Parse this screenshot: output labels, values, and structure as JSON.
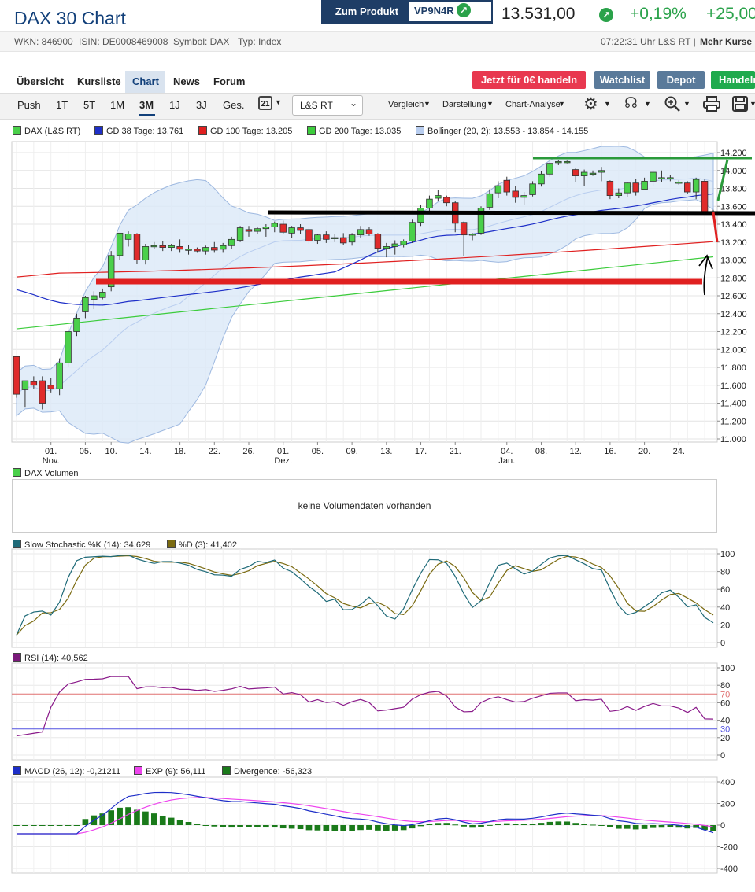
{
  "header": {
    "title": "DAX 30 Chart",
    "product_button": "Zum Produkt",
    "product_wkn": "VP9N4R",
    "price": "13.531,00",
    "change_pct": "+0,19%",
    "change_abs": "+25,00",
    "wkn": "WKN: 846900",
    "isin": "ISIN: DE0008469008",
    "symbol": "Symbol: DAX",
    "typ": "Typ: Index",
    "time": "07:22:31 Uhr L&S RT |",
    "more": "Mehr Kurse"
  },
  "nav": {
    "items": [
      "Übersicht",
      "Kursliste",
      "Chart",
      "News",
      "Forum"
    ],
    "trade_button": "Jetzt für 0€ handeln",
    "watchlist_button": "Watchlist",
    "depot_button": "Depot",
    "handeln_button": "Handeln"
  },
  "toolbar": {
    "periods": [
      "Push",
      "1T",
      "5T",
      "1M",
      "3M",
      "1J",
      "3J",
      "Ges."
    ],
    "calendar_day": "21",
    "exchange": "L&S RT",
    "vergleich": "Vergleich",
    "darstellung": "Darstellung",
    "analyse": "Chart-Analyse"
  },
  "legend": {
    "dax": "DAX (L&S RT)",
    "gd38": "GD 38 Tage: 13.761",
    "gd100": "GD 100 Tage: 13.205",
    "gd200": "GD 200 Tage: 13.035",
    "bollinger": "Bollinger (20, 2): 13.553 - 13.854 - 14.155",
    "volume": "DAX Volumen",
    "no_volume": "keine Volumendaten vorhanden",
    "stoch_k": "Slow Stochastic %K (14): 34,629",
    "stoch_d": "%D (3): 41,402",
    "rsi": "RSI (14): 40,562",
    "macd": "MACD (26, 12): -0,21211",
    "exp": "EXP (9): 56,111",
    "divergence": "Divergence: -56,323"
  },
  "colors": {
    "up": "#4ad04a",
    "down": "#e02b2b",
    "gd38": "#1e2fc8",
    "gd100": "#e02020",
    "gd200": "#3ccc3c",
    "boll_fill": "#dbe8f8",
    "accent": "#12407a"
  },
  "chart_data": [
    {
      "type": "candlestick",
      "yticks": [
        "14.200",
        "14.000",
        "13.800",
        "13.600",
        "13.400",
        "13.200",
        "13.000",
        "12.800",
        "12.600",
        "12.400",
        "12.200",
        "12.000",
        "11.800",
        "11.600",
        "11.400",
        "11.200",
        "11.000"
      ],
      "ylim": [
        10900,
        14300
      ],
      "xticks": [
        {
          "label": "01.",
          "sub": "Nov.",
          "i": 4
        },
        {
          "label": "05.",
          "i": 8
        },
        {
          "label": "10.",
          "i": 11
        },
        {
          "label": "14.",
          "i": 15
        },
        {
          "label": "18.",
          "i": 19
        },
        {
          "label": "22.",
          "i": 23
        },
        {
          "label": "26.",
          "i": 27
        },
        {
          "label": "01.",
          "sub": "Dez.",
          "i": 31
        },
        {
          "label": "05.",
          "i": 35
        },
        {
          "label": "09.",
          "i": 39
        },
        {
          "label": "13.",
          "i": 43
        },
        {
          "label": "17.",
          "i": 47
        },
        {
          "label": "21.",
          "i": 51
        },
        {
          "label": "04.",
          "sub": "Jan.",
          "i": 57
        },
        {
          "label": "08.",
          "i": 61
        },
        {
          "label": "12.",
          "i": 65
        },
        {
          "label": "16.",
          "i": 69
        },
        {
          "label": "20.",
          "i": 73
        },
        {
          "label": "24.",
          "i": 77
        }
      ],
      "candles": [
        [
          11920,
          11930,
          11460,
          11500
        ],
        [
          11550,
          11650,
          11350,
          11650
        ],
        [
          11640,
          11700,
          11560,
          11600
        ],
        [
          11650,
          11700,
          11330,
          11400
        ],
        [
          11600,
          11680,
          11520,
          11560
        ],
        [
          11560,
          11900,
          11490,
          11850
        ],
        [
          11850,
          12250,
          11800,
          12200
        ],
        [
          12200,
          12400,
          12150,
          12350
        ],
        [
          12420,
          12600,
          12350,
          12580
        ],
        [
          12560,
          12650,
          12450,
          12600
        ],
        [
          12580,
          12680,
          12560,
          12640
        ],
        [
          12700,
          13100,
          12650,
          13050
        ],
        [
          13050,
          13300,
          13000,
          13300
        ],
        [
          13230,
          13320,
          13150,
          13290
        ],
        [
          13290,
          13300,
          12960,
          13000
        ],
        [
          13000,
          13180,
          12950,
          13150
        ],
        [
          13150,
          13200,
          13120,
          13160
        ],
        [
          13160,
          13210,
          13100,
          13140
        ],
        [
          13140,
          13180,
          13100,
          13160
        ],
        [
          13150,
          13230,
          13080,
          13120
        ],
        [
          13110,
          13170,
          13060,
          13120
        ],
        [
          13120,
          13140,
          13080,
          13100
        ],
        [
          13100,
          13160,
          13060,
          13140
        ],
        [
          13140,
          13200,
          13080,
          13110
        ],
        [
          13120,
          13190,
          13080,
          13160
        ],
        [
          13160,
          13260,
          13120,
          13230
        ],
        [
          13220,
          13380,
          13200,
          13360
        ],
        [
          13340,
          13380,
          13260,
          13320
        ],
        [
          13320,
          13370,
          13290,
          13350
        ],
        [
          13350,
          13400,
          13260,
          13370
        ],
        [
          13370,
          13430,
          13310,
          13410
        ],
        [
          13400,
          13440,
          13290,
          13310
        ],
        [
          13300,
          13380,
          13250,
          13360
        ],
        [
          13360,
          13400,
          13290,
          13330
        ],
        [
          13340,
          13370,
          13180,
          13210
        ],
        [
          13220,
          13290,
          13180,
          13280
        ],
        [
          13280,
          13320,
          13190,
          13230
        ],
        [
          13240,
          13290,
          13200,
          13250
        ],
        [
          13250,
          13300,
          13170,
          13190
        ],
        [
          13200,
          13300,
          13160,
          13280
        ],
        [
          13280,
          13380,
          13250,
          13340
        ],
        [
          13340,
          13370,
          13270,
          13290
        ],
        [
          13290,
          13300,
          13080,
          13130
        ],
        [
          13130,
          13190,
          13030,
          13150
        ],
        [
          13150,
          13220,
          13060,
          13180
        ],
        [
          13170,
          13230,
          13140,
          13210
        ],
        [
          13210,
          13450,
          13190,
          13420
        ],
        [
          13420,
          13620,
          13380,
          13580
        ],
        [
          13580,
          13720,
          13540,
          13680
        ],
        [
          13690,
          13780,
          13660,
          13720
        ],
        [
          13700,
          13720,
          13600,
          13640
        ],
        [
          13640,
          13660,
          13310,
          13410
        ],
        [
          13420,
          13430,
          13040,
          13280
        ],
        [
          13280,
          13300,
          13220,
          13290
        ],
        [
          13300,
          13600,
          13280,
          13580
        ],
        [
          13590,
          13790,
          13560,
          13740
        ],
        [
          13750,
          13880,
          13690,
          13830
        ],
        [
          13890,
          13930,
          13720,
          13760
        ],
        [
          13770,
          13830,
          13640,
          13700
        ],
        [
          13700,
          13760,
          13620,
          13720
        ],
        [
          13730,
          13880,
          13710,
          13850
        ],
        [
          13850,
          13990,
          13820,
          13960
        ],
        [
          13960,
          14100,
          13930,
          14080
        ],
        [
          14090,
          14120,
          14060,
          14100
        ],
        [
          14100,
          14110,
          14080,
          14100
        ],
        [
          14010,
          14030,
          13870,
          13940
        ],
        [
          13940,
          14010,
          13830,
          13980
        ],
        [
          13960,
          14000,
          13940,
          13970
        ],
        [
          13980,
          14040,
          13880,
          14000
        ],
        [
          13880,
          13890,
          13680,
          13720
        ],
        [
          13720,
          13800,
          13690,
          13750
        ],
        [
          13750,
          13870,
          13700,
          13860
        ],
        [
          13860,
          13910,
          13720,
          13760
        ],
        [
          13790,
          13920,
          13780,
          13880
        ],
        [
          13880,
          14010,
          13830,
          13980
        ],
        [
          13920,
          14000,
          13870,
          13920
        ],
        [
          13920,
          13950,
          13880,
          13920
        ],
        [
          13870,
          13890,
          13840,
          13870
        ],
        [
          13860,
          13880,
          13740,
          13760
        ],
        [
          13760,
          13920,
          13680,
          13900
        ],
        [
          13880,
          13900,
          13530,
          13540
        ],
        [
          13540,
          13560,
          13510,
          13531
        ]
      ]
    },
    {
      "type": "line",
      "title": "Slow Stochastic",
      "yticks": [
        "100",
        "80",
        "60",
        "40",
        "20",
        "0"
      ],
      "ylim": [
        0,
        100
      ]
    },
    {
      "type": "line",
      "title": "RSI (14)",
      "yticks": [
        "100",
        "80",
        "60",
        "40",
        "20",
        "0"
      ],
      "levels": [
        "70",
        "30"
      ],
      "ylim": [
        0,
        100
      ]
    },
    {
      "type": "bar",
      "title": "MACD",
      "yticks": [
        "400",
        "200",
        "0",
        "-200",
        "-400"
      ],
      "ylim": [
        -400,
        400
      ]
    }
  ]
}
